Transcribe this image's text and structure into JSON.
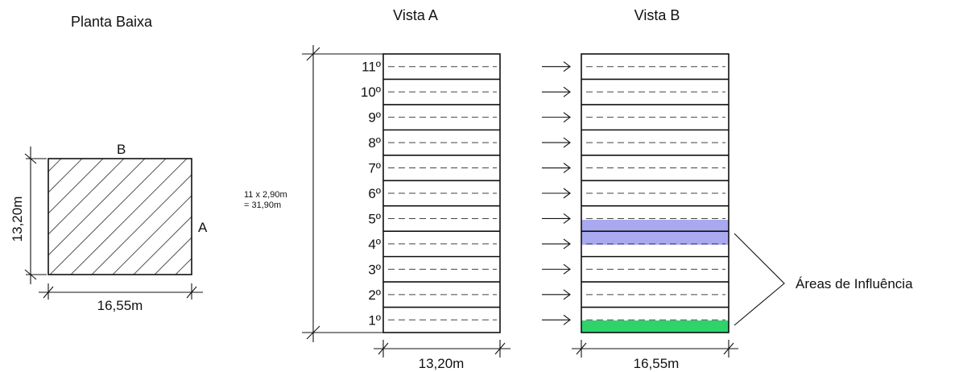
{
  "plan": {
    "title": "Planta Baixa",
    "side_b": "B",
    "side_a": "A",
    "width_label": "16,55m",
    "depth_label": "13,20m"
  },
  "view_a": {
    "title": "Vista A",
    "width_label": "13,20m",
    "height_note_1": "11 x 2,90m",
    "height_note_2": "= 31,90m",
    "floors": [
      "1º",
      "2º",
      "3º",
      "4º",
      "5º",
      "6º",
      "7º",
      "8º",
      "9º",
      "10º",
      "11º"
    ]
  },
  "view_b": {
    "title": "Vista B",
    "width_label": "16,55m",
    "highlight_colors": {
      "upper": "#a9a9f0",
      "bottom": "#2ed36a"
    }
  },
  "callout": {
    "label": "Áreas de Influência"
  }
}
